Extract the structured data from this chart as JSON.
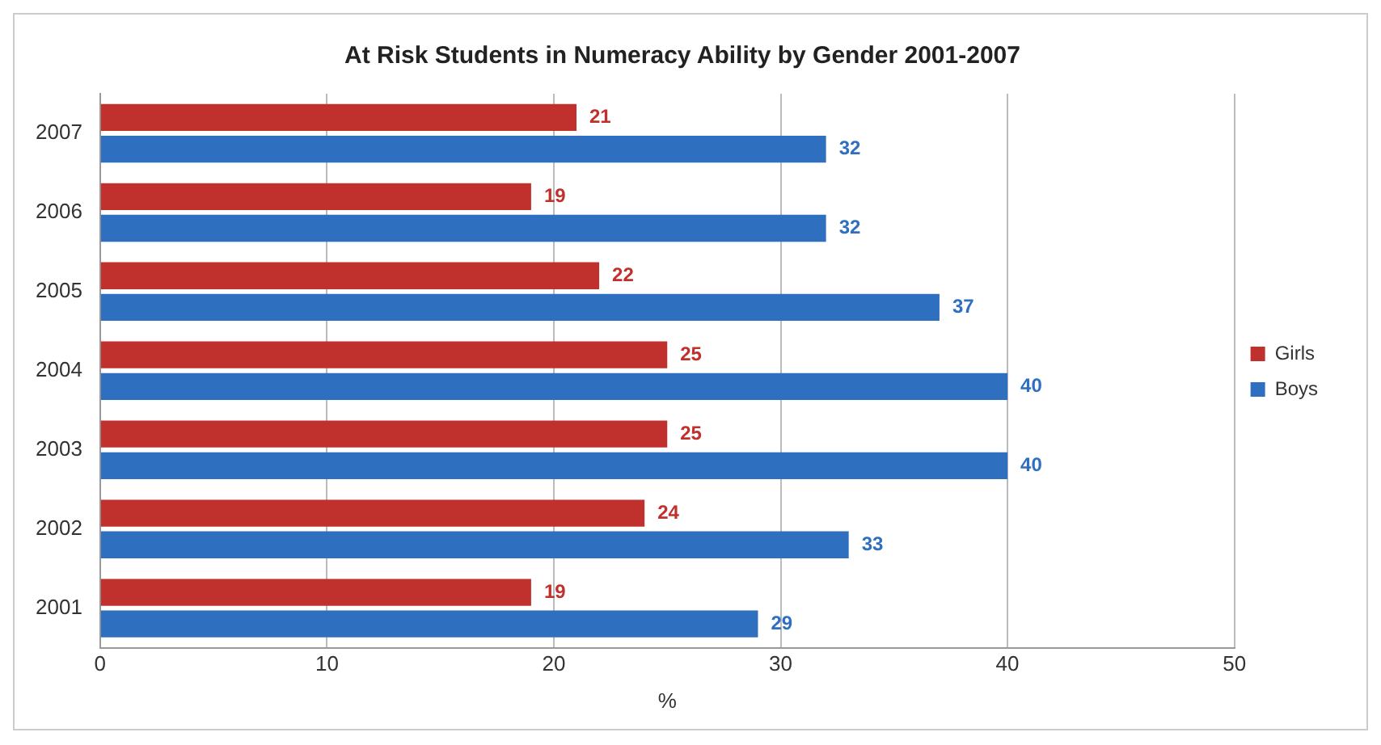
{
  "chart_data": {
    "type": "bar",
    "orientation": "horizontal",
    "title": "At Risk Students in Numeracy Ability by Gender 2001-2007",
    "xlabel": "%",
    "categories": [
      "2007",
      "2006",
      "2005",
      "2004",
      "2003",
      "2002",
      "2001"
    ],
    "series": [
      {
        "name": "Girls",
        "color": "#c0302c",
        "values": [
          21,
          19,
          22,
          25,
          25,
          24,
          19
        ]
      },
      {
        "name": "Boys",
        "color": "#2e6fc0",
        "values": [
          32,
          32,
          37,
          40,
          40,
          33,
          29
        ]
      }
    ],
    "xlim": [
      0,
      50
    ],
    "xticks": [
      0,
      10,
      20,
      30,
      40,
      50
    ],
    "grid": "x",
    "legend": "right",
    "data_labels": true
  }
}
